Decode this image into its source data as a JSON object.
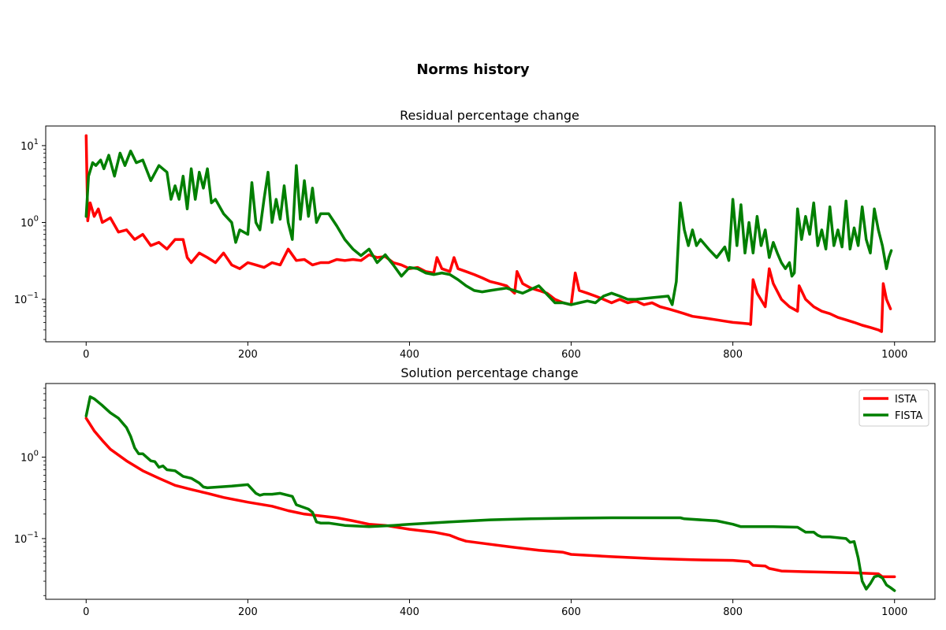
{
  "figure": {
    "title": "Norms history"
  },
  "chart_data": [
    {
      "type": "line",
      "title": "Residual percentage change",
      "xlabel": "",
      "ylabel": "",
      "yscale": "log",
      "xlim": [
        -50,
        1050
      ],
      "ylim": [
        0.028,
        18
      ],
      "xticks": [
        0,
        200,
        400,
        600,
        800,
        1000
      ],
      "yticks": [
        {
          "value": 0.1,
          "base": "10",
          "exp": "−1"
        },
        {
          "value": 1,
          "base": "10",
          "exp": "0"
        },
        {
          "value": 10,
          "base": "10",
          "exp": "1"
        }
      ],
      "grid": false,
      "legend": null,
      "series": [
        {
          "key": "ista",
          "color": "#ff0000",
          "x": [
            0,
            2,
            5,
            10,
            15,
            20,
            30,
            40,
            50,
            60,
            70,
            80,
            90,
            100,
            110,
            120,
            125,
            130,
            140,
            150,
            160,
            170,
            180,
            190,
            200,
            210,
            220,
            230,
            240,
            250,
            260,
            270,
            280,
            290,
            300,
            310,
            320,
            330,
            340,
            350,
            360,
            370,
            380,
            390,
            400,
            410,
            420,
            430,
            434,
            440,
            450,
            455,
            460,
            470,
            480,
            490,
            500,
            510,
            520,
            530,
            533,
            540,
            550,
            560,
            570,
            580,
            590,
            600,
            605,
            610,
            620,
            630,
            640,
            650,
            660,
            670,
            680,
            690,
            700,
            710,
            720,
            730,
            740,
            750,
            760,
            770,
            780,
            790,
            800,
            810,
            820,
            822,
            825,
            830,
            840,
            845,
            850,
            860,
            870,
            880,
            882,
            890,
            900,
            910,
            920,
            930,
            940,
            950,
            960,
            970,
            980,
            984,
            986,
            990,
            995
          ],
          "values": [
            13.5,
            1.05,
            1.8,
            1.2,
            1.5,
            1.0,
            1.15,
            0.75,
            0.8,
            0.6,
            0.7,
            0.5,
            0.55,
            0.45,
            0.6,
            0.6,
            0.35,
            0.3,
            0.4,
            0.35,
            0.3,
            0.4,
            0.28,
            0.25,
            0.3,
            0.28,
            0.26,
            0.3,
            0.28,
            0.45,
            0.32,
            0.33,
            0.28,
            0.3,
            0.3,
            0.33,
            0.32,
            0.33,
            0.32,
            0.38,
            0.35,
            0.36,
            0.3,
            0.28,
            0.25,
            0.26,
            0.23,
            0.22,
            0.35,
            0.25,
            0.23,
            0.35,
            0.25,
            0.23,
            0.21,
            0.19,
            0.17,
            0.16,
            0.15,
            0.12,
            0.23,
            0.16,
            0.14,
            0.13,
            0.12,
            0.1,
            0.09,
            0.085,
            0.22,
            0.13,
            0.12,
            0.11,
            0.1,
            0.09,
            0.1,
            0.09,
            0.095,
            0.085,
            0.09,
            0.08,
            0.075,
            0.07,
            0.065,
            0.06,
            0.058,
            0.056,
            0.054,
            0.052,
            0.05,
            0.049,
            0.048,
            0.047,
            0.18,
            0.12,
            0.08,
            0.25,
            0.16,
            0.1,
            0.08,
            0.07,
            0.15,
            0.1,
            0.08,
            0.07,
            0.065,
            0.058,
            0.054,
            0.05,
            0.046,
            0.043,
            0.04,
            0.038,
            0.16,
            0.1,
            0.075
          ]
        },
        {
          "key": "fista",
          "color": "#007f00",
          "x": [
            0,
            3,
            8,
            12,
            18,
            22,
            28,
            35,
            42,
            48,
            55,
            62,
            70,
            80,
            90,
            100,
            105,
            110,
            115,
            120,
            125,
            130,
            135,
            140,
            145,
            150,
            155,
            160,
            170,
            180,
            185,
            190,
            200,
            205,
            210,
            215,
            220,
            225,
            230,
            235,
            240,
            245,
            250,
            255,
            260,
            265,
            270,
            275,
            280,
            285,
            290,
            300,
            310,
            320,
            330,
            340,
            350,
            360,
            370,
            380,
            390,
            400,
            410,
            420,
            430,
            440,
            450,
            460,
            470,
            480,
            490,
            500,
            520,
            540,
            560,
            580,
            590,
            600,
            610,
            620,
            630,
            640,
            650,
            660,
            670,
            680,
            700,
            720,
            725,
            730,
            735,
            740,
            745,
            750,
            755,
            760,
            770,
            780,
            790,
            795,
            800,
            805,
            810,
            815,
            820,
            825,
            830,
            835,
            840,
            845,
            850,
            855,
            860,
            865,
            870,
            873,
            876,
            880,
            885,
            890,
            895,
            900,
            905,
            910,
            915,
            920,
            925,
            930,
            935,
            940,
            945,
            950,
            955,
            960,
            965,
            970,
            975,
            980,
            985,
            990,
            993,
            996
          ],
          "values": [
            1.2,
            4.0,
            6.0,
            5.5,
            6.5,
            5.0,
            7.5,
            4.0,
            8.0,
            5.5,
            8.5,
            6.0,
            6.5,
            3.5,
            5.5,
            4.5,
            2.0,
            3.0,
            2.0,
            4.0,
            1.5,
            5.0,
            2.0,
            4.5,
            2.8,
            5.0,
            1.8,
            2.0,
            1.3,
            1.0,
            0.55,
            0.8,
            0.7,
            3.3,
            1.0,
            0.8,
            2.0,
            4.5,
            1.0,
            2.0,
            1.1,
            3.0,
            1.0,
            0.6,
            5.5,
            1.1,
            3.5,
            1.2,
            2.8,
            1.0,
            1.3,
            1.3,
            0.9,
            0.6,
            0.45,
            0.37,
            0.45,
            0.3,
            0.38,
            0.28,
            0.2,
            0.26,
            0.25,
            0.22,
            0.21,
            0.22,
            0.21,
            0.18,
            0.15,
            0.13,
            0.125,
            0.13,
            0.14,
            0.12,
            0.15,
            0.09,
            0.09,
            0.085,
            0.09,
            0.095,
            0.09,
            0.11,
            0.12,
            0.11,
            0.1,
            0.1,
            0.105,
            0.11,
            0.085,
            0.17,
            1.8,
            0.8,
            0.5,
            0.8,
            0.5,
            0.6,
            0.45,
            0.35,
            0.48,
            0.32,
            2.0,
            0.5,
            1.7,
            0.4,
            1.0,
            0.4,
            1.2,
            0.5,
            0.8,
            0.35,
            0.55,
            0.4,
            0.3,
            0.25,
            0.3,
            0.2,
            0.22,
            1.5,
            0.6,
            1.2,
            0.7,
            1.8,
            0.5,
            0.8,
            0.45,
            1.6,
            0.5,
            0.8,
            0.48,
            1.9,
            0.45,
            0.85,
            0.5,
            1.6,
            0.6,
            0.4,
            1.5,
            0.8,
            0.5,
            0.25,
            0.35,
            0.43
          ]
        }
      ]
    },
    {
      "type": "line",
      "title": "Solution percentage change",
      "xlabel": "",
      "ylabel": "",
      "yscale": "log",
      "xlim": [
        -50,
        1050
      ],
      "ylim": [
        0.018,
        8
      ],
      "xticks": [
        0,
        200,
        400,
        600,
        800,
        1000
      ],
      "yticks": [
        {
          "value": 0.1,
          "base": "10",
          "exp": "−1"
        },
        {
          "value": 1,
          "base": "10",
          "exp": "0"
        }
      ],
      "grid": false,
      "legend": "upper right",
      "series": [
        {
          "key": "ista",
          "name": "ISTA",
          "color": "#ff0000",
          "x": [
            0,
            10,
            20,
            30,
            50,
            70,
            90,
            110,
            130,
            150,
            170,
            200,
            230,
            250,
            270,
            290,
            310,
            330,
            350,
            370,
            400,
            430,
            450,
            460,
            470,
            500,
            530,
            560,
            590,
            600,
            650,
            700,
            750,
            800,
            820,
            825,
            840,
            845,
            850,
            860,
            900,
            950,
            980,
            985,
            1000
          ],
          "values": [
            3.0,
            2.1,
            1.6,
            1.25,
            0.9,
            0.68,
            0.55,
            0.45,
            0.4,
            0.36,
            0.32,
            0.28,
            0.25,
            0.22,
            0.2,
            0.19,
            0.18,
            0.165,
            0.15,
            0.145,
            0.13,
            0.12,
            0.11,
            0.1,
            0.093,
            0.085,
            0.078,
            0.072,
            0.068,
            0.064,
            0.06,
            0.057,
            0.055,
            0.054,
            0.052,
            0.047,
            0.046,
            0.043,
            0.042,
            0.04,
            0.039,
            0.038,
            0.037,
            0.034,
            0.034
          ]
        },
        {
          "key": "fista",
          "name": "FISTA",
          "color": "#007f00",
          "x": [
            0,
            5,
            10,
            20,
            30,
            40,
            50,
            55,
            60,
            65,
            70,
            80,
            85,
            90,
            95,
            100,
            110,
            120,
            130,
            140,
            145,
            150,
            180,
            200,
            210,
            215,
            220,
            230,
            240,
            255,
            260,
            270,
            275,
            280,
            285,
            290,
            300,
            320,
            350,
            380,
            400,
            450,
            500,
            550,
            600,
            650,
            700,
            735,
            740,
            780,
            800,
            810,
            820,
            850,
            880,
            890,
            900,
            905,
            910,
            920,
            940,
            945,
            950,
            955,
            960,
            965,
            970,
            975,
            980,
            985,
            990,
            995,
            1000
          ],
          "values": [
            3.2,
            5.5,
            5.2,
            4.3,
            3.5,
            3.0,
            2.3,
            1.8,
            1.3,
            1.1,
            1.1,
            0.9,
            0.88,
            0.75,
            0.78,
            0.7,
            0.68,
            0.58,
            0.55,
            0.48,
            0.43,
            0.42,
            0.44,
            0.46,
            0.36,
            0.34,
            0.35,
            0.35,
            0.36,
            0.33,
            0.26,
            0.24,
            0.23,
            0.21,
            0.16,
            0.155,
            0.155,
            0.145,
            0.14,
            0.145,
            0.15,
            0.16,
            0.17,
            0.175,
            0.178,
            0.18,
            0.18,
            0.18,
            0.175,
            0.165,
            0.15,
            0.14,
            0.14,
            0.14,
            0.138,
            0.12,
            0.12,
            0.11,
            0.105,
            0.105,
            0.1,
            0.09,
            0.092,
            0.058,
            0.03,
            0.024,
            0.028,
            0.034,
            0.035,
            0.033,
            0.027,
            0.025,
            0.023
          ]
        }
      ]
    }
  ]
}
